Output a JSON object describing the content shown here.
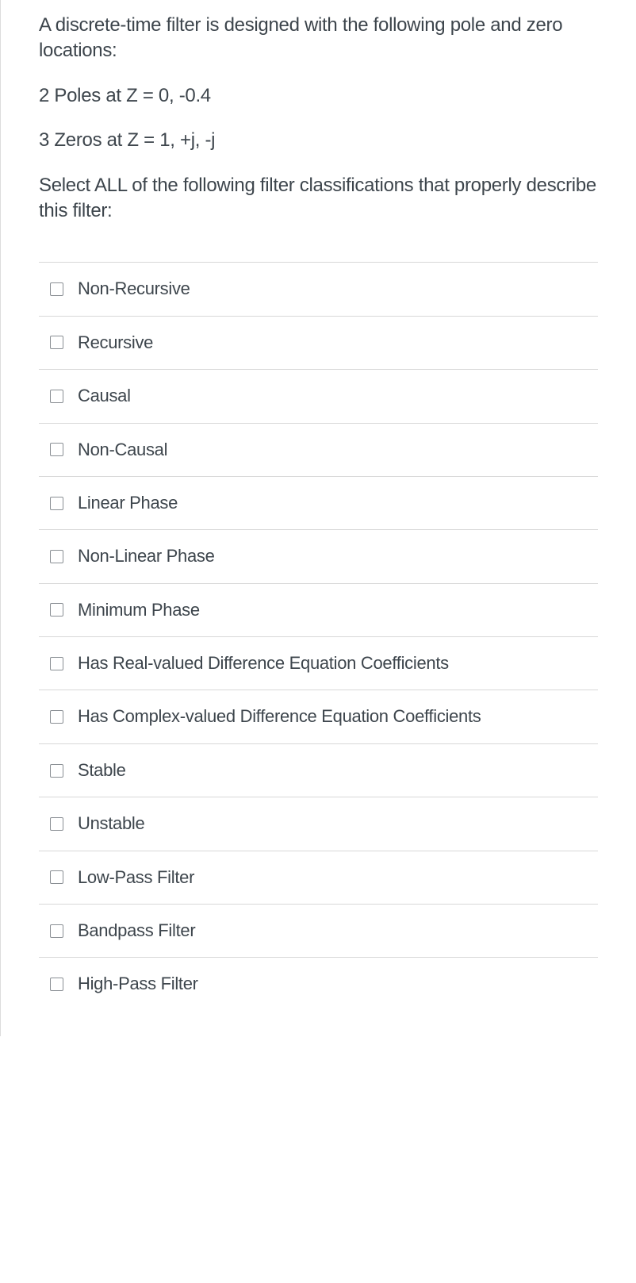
{
  "question": {
    "paragraphs": [
      "A discrete-time filter is designed with the following pole and zero locations:",
      "2 Poles at Z = 0, -0.4",
      "3 Zeros at Z = 1, +j, -j",
      "Select ALL of the following filter classifications that properly describe this filter:"
    ]
  },
  "options": [
    {
      "label": "Non-Recursive",
      "checked": false
    },
    {
      "label": "Recursive",
      "checked": false
    },
    {
      "label": "Causal",
      "checked": false
    },
    {
      "label": "Non-Causal",
      "checked": false
    },
    {
      "label": "Linear Phase",
      "checked": false
    },
    {
      "label": "Non-Linear Phase",
      "checked": false
    },
    {
      "label": "Minimum Phase",
      "checked": false
    },
    {
      "label": "Has Real-valued Difference Equation Coefficients",
      "checked": false
    },
    {
      "label": "Has Complex-valued Difference Equation Coefficients",
      "checked": false
    },
    {
      "label": "Stable",
      "checked": false
    },
    {
      "label": "Unstable",
      "checked": false
    },
    {
      "label": "Low-Pass Filter",
      "checked": false
    },
    {
      "label": "Bandpass Filter",
      "checked": false
    },
    {
      "label": "High-Pass Filter",
      "checked": false
    }
  ],
  "colors": {
    "text": "#3d454c",
    "divider": "#d8d8d8",
    "checkbox_border": "#8a8f94",
    "background": "#ffffff"
  },
  "typography": {
    "question_fontsize": 24,
    "option_fontsize": 22,
    "font_family": "Helvetica Neue"
  }
}
